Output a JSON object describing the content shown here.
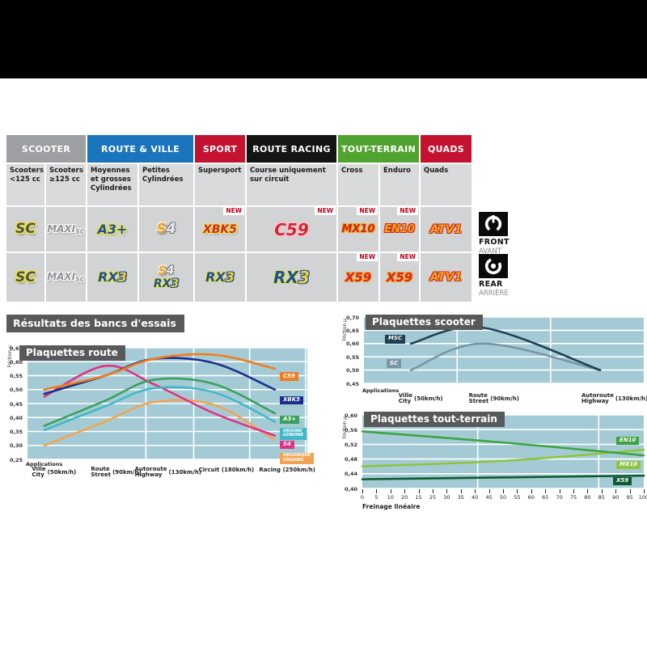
{
  "colors": {
    "chart_bg": "#a4cbd5",
    "panel_dark": "#58595b",
    "grid": "#ffffff"
  },
  "table": {
    "new_label": "NEW",
    "categories": [
      {
        "label": "SCOOTER",
        "color": "#9d9fa2",
        "span": 2
      },
      {
        "label": "ROUTE & VILLE",
        "color": "#1b75bc",
        "span": 2
      },
      {
        "label": "SPORT",
        "color": "#c41230",
        "span": 1
      },
      {
        "label": "ROUTE RACING",
        "color": "#141414",
        "span": 1
      },
      {
        "label": "TOUT-TERRAIN",
        "color": "#4fa32e",
        "span": 2
      },
      {
        "label": "QUADS",
        "color": "#c41230",
        "span": 1
      }
    ],
    "subheaders": [
      "Scooters <125 cc",
      "Scooters ≥125 cc",
      "Moyennes et grosses Cylindrées",
      "Petites Cylindrées",
      "Supersport",
      "Course uniquement sur circuit",
      "Cross",
      "Enduro",
      "Quads"
    ],
    "front_row": [
      {
        "type": "sc",
        "text": "SC"
      },
      {
        "type": "maxisc",
        "text": "MAXI",
        "sub": "SC"
      },
      {
        "type": "a3",
        "text": "A3+"
      },
      {
        "type": "s4",
        "text": "S4"
      },
      {
        "type": "xbk5",
        "text": "XBK5",
        "new": true
      },
      {
        "type": "c59",
        "text": "C59",
        "new": true,
        "big": true
      },
      {
        "type": "mx10",
        "text": "MX10",
        "new": true
      },
      {
        "type": "en10",
        "text": "EN10",
        "new": true
      },
      {
        "type": "atv1",
        "text": "ATV1"
      }
    ],
    "rear_row": [
      {
        "type": "sc",
        "text": "SC"
      },
      {
        "type": "maxisc",
        "text": "MAXI",
        "sub": "SC"
      },
      {
        "type": "rx3",
        "text": "RX3"
      },
      {
        "type": "stack",
        "items": [
          {
            "type": "s4",
            "text": "S4"
          },
          {
            "type": "rx3",
            "text": "RX3"
          }
        ]
      },
      {
        "type": "rx3",
        "text": "RX3"
      },
      {
        "type": "rx3",
        "text": "RX3",
        "big": true
      },
      {
        "type": "x59",
        "text": "X59",
        "new": true
      },
      {
        "type": "x59",
        "text": "X59",
        "new": true
      },
      {
        "type": "atv1",
        "text": "ATV1"
      }
    ],
    "front_label": {
      "title": "FRONT",
      "subtitle": "AVANT"
    },
    "rear_label": {
      "title": "REAR",
      "subtitle": "ARRIÈRE"
    }
  },
  "results_heading": "Résultats des bancs d'essais",
  "chart_data": [
    {
      "type": "line",
      "title": "Plaquettes route",
      "ylabel": "Friction µ",
      "xlabel": "Applications",
      "ylim": [
        0.25,
        0.65
      ],
      "ystep": 0.05,
      "ytick_labels": [
        "0,65",
        "0,60",
        "0,55",
        "0,50",
        "0,45",
        "0,40",
        "0,35",
        "0,30",
        "0,25"
      ],
      "categories": [
        {
          "fr": "Ville",
          "en": "City",
          "speed": "(50km/h)"
        },
        {
          "fr": "Route",
          "en": "Street",
          "speed": "(90km/h)"
        },
        {
          "fr": "Autoroute",
          "en": "Highway",
          "speed": "(130km/h)"
        },
        {
          "fr": "Circuit (180km/h)"
        },
        {
          "fr": "Racing (250km/h)"
        }
      ],
      "legend_position": "right",
      "grid": true,
      "series": [
        {
          "name": "C59",
          "color": "#ef7d1e",
          "values": [
            0.5,
            0.55,
            0.61,
            0.625,
            0.575
          ]
        },
        {
          "name": "XBK5",
          "color": "#1c2f8c",
          "values": [
            0.485,
            0.55,
            0.61,
            0.595,
            0.5
          ]
        },
        {
          "name": "A3+",
          "color": "#3ba05e",
          "values": [
            0.37,
            0.46,
            0.535,
            0.52,
            0.415
          ]
        },
        {
          "name": "ORIGINE\nGENUINE",
          "color": "#43b7c9",
          "values": [
            0.355,
            0.44,
            0.505,
            0.49,
            0.385
          ]
        },
        {
          "name": "S4",
          "color": "#e13384",
          "values": [
            0.475,
            0.585,
            0.52,
            0.415,
            0.335
          ]
        },
        {
          "name": "ORGANIQUE\nORGANIC",
          "color": "#f2a452",
          "values": [
            0.3,
            0.385,
            0.455,
            0.445,
            0.32
          ]
        }
      ]
    },
    {
      "type": "line",
      "title": "Plaquettes scooter",
      "ylabel": "Friction µ",
      "xlabel": "Applications",
      "ylim": [
        0.45,
        0.7
      ],
      "ystep": 0.05,
      "ytick_labels": [
        "0,70",
        "0,65",
        "0,60",
        "0,55",
        "0,50",
        "0,45"
      ],
      "categories": [
        {
          "fr": "Ville",
          "en": "City",
          "speed": "(50km/h)"
        },
        {
          "fr": "Route",
          "en": "Street",
          "speed": "(90km/h)"
        },
        {
          "fr": "Autoroute",
          "en": "Highway",
          "speed": "(130km/h)"
        }
      ],
      "legend_position": "left-inside",
      "grid": true,
      "series": [
        {
          "name": "MSC",
          "color": "#1f4254",
          "values": [
            0.6,
            0.66,
            0.5
          ]
        },
        {
          "name": "SC",
          "color": "#7796a6",
          "values": [
            0.5,
            0.6,
            0.5
          ]
        }
      ]
    },
    {
      "type": "line",
      "title": "Plaquettes tout-terrain",
      "ylabel": "Friction µ",
      "xlabel": "Freinage linéaire",
      "ylim": [
        0.4,
        0.6
      ],
      "ystep": 0.04,
      "ytick_labels": [
        "0,60",
        "0,56",
        "0,52",
        "0,48",
        "0,44",
        "0,40"
      ],
      "xticks": [
        "0",
        "5",
        "10",
        "20",
        "15",
        "25",
        "30",
        "35",
        "40",
        "45",
        "50",
        "55",
        "60",
        "65",
        "70",
        "75",
        "80",
        "85",
        "90",
        "95",
        "100"
      ],
      "x_range": [
        0,
        100
      ],
      "legend_position": "right-inside",
      "grid": true,
      "series": [
        {
          "name": "EN10",
          "color": "#3ea442",
          "values": [
            0.555,
            0.525,
            0.49
          ]
        },
        {
          "name": "MX10",
          "color": "#8fc43e",
          "values": [
            0.46,
            0.475,
            0.505
          ]
        },
        {
          "name": "X59",
          "color": "#0e5b2f",
          "values": [
            0.425,
            0.43,
            0.435
          ]
        }
      ]
    }
  ]
}
